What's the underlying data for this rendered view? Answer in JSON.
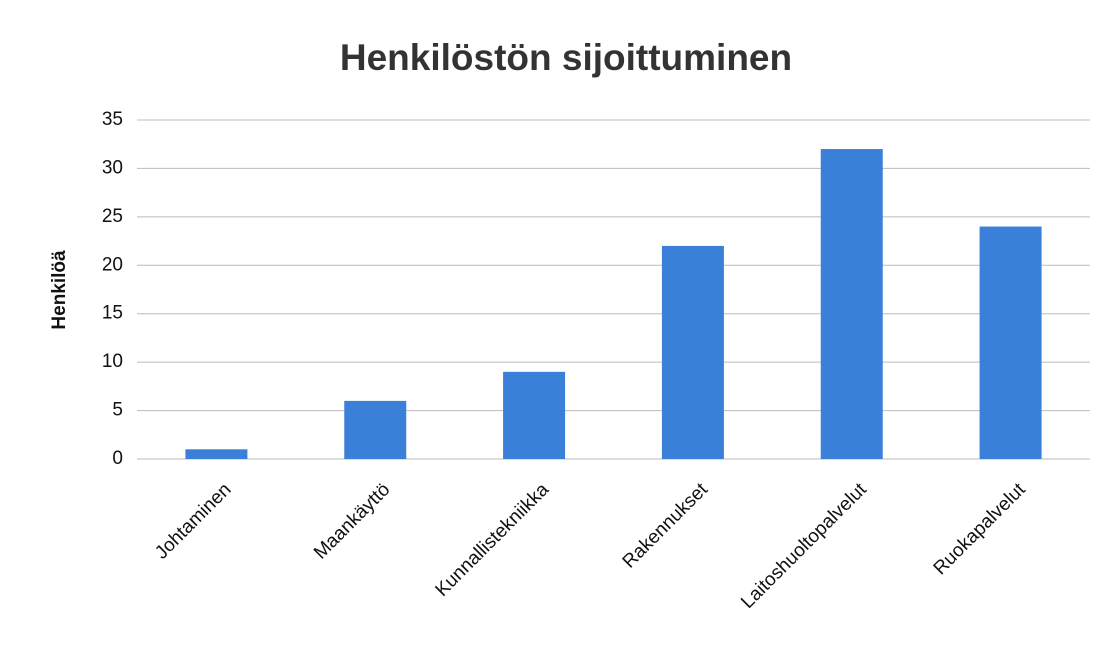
{
  "chart_data": {
    "type": "bar",
    "title": "Henkilöstön sijoittuminen",
    "y_label": "Henkilöä",
    "categories": [
      "Johtaminen",
      "Maankäyttö",
      "Kunnallistekniikka",
      "Rakennukset",
      "Laitoshuoltopalvelut",
      "Ruokapalvelut"
    ],
    "values": [
      1,
      6,
      9,
      22,
      32,
      24
    ],
    "color": "#3b80d8",
    "ylim": [
      0,
      35
    ],
    "yticks": [
      0,
      5,
      10,
      15,
      20,
      25,
      30,
      35
    ],
    "grid": true
  }
}
